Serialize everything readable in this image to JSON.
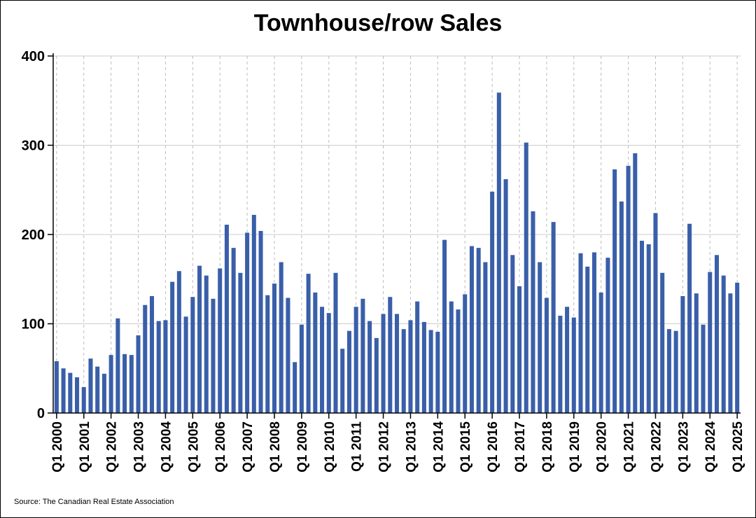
{
  "chart_data": {
    "type": "bar",
    "title": "Townhouse/row Sales",
    "xlabel": "",
    "ylabel": "",
    "ylim": [
      0,
      400
    ],
    "yticks": [
      0,
      100,
      200,
      300,
      400
    ],
    "grid": true,
    "bar_color": "#3a5fa9",
    "x_tick_labels": [
      "Q1 2000",
      "Q1 2001",
      "Q1 2002",
      "Q1 2003",
      "Q1 2004",
      "Q1 2005",
      "Q1 2006",
      "Q1 2007",
      "Q1 2008",
      "Q1 2009",
      "Q1 2010",
      "Q1 2011",
      "Q1 2012",
      "Q1 2013",
      "Q1 2014",
      "Q1 2015",
      "Q1 2016",
      "Q1 2017",
      "Q1 2018",
      "Q1 2019",
      "Q1 2020",
      "Q1 2021",
      "Q1 2022",
      "Q1 2023",
      "Q1 2024",
      "Q1 2025"
    ],
    "values": [
      58,
      50,
      45,
      40,
      29,
      61,
      52,
      44,
      65,
      106,
      66,
      65,
      87,
      121,
      131,
      103,
      104,
      147,
      159,
      108,
      130,
      165,
      154,
      128,
      162,
      211,
      185,
      157,
      202,
      222,
      204,
      132,
      145,
      169,
      129,
      57,
      99,
      156,
      135,
      119,
      112,
      157,
      72,
      92,
      119,
      128,
      103,
      84,
      111,
      130,
      111,
      94,
      104,
      125,
      102,
      93,
      91,
      194,
      125,
      116,
      133,
      187,
      185,
      169,
      248,
      359,
      262,
      177,
      142,
      303,
      226,
      169,
      129,
      214,
      109,
      119,
      107,
      179,
      164,
      180,
      135,
      174,
      273,
      237,
      277,
      291,
      193,
      189,
      224,
      157,
      94,
      92,
      131,
      212,
      134,
      99,
      158,
      177,
      154,
      134,
      146
    ],
    "source": "Source: The Canadian Real Estate Association"
  }
}
